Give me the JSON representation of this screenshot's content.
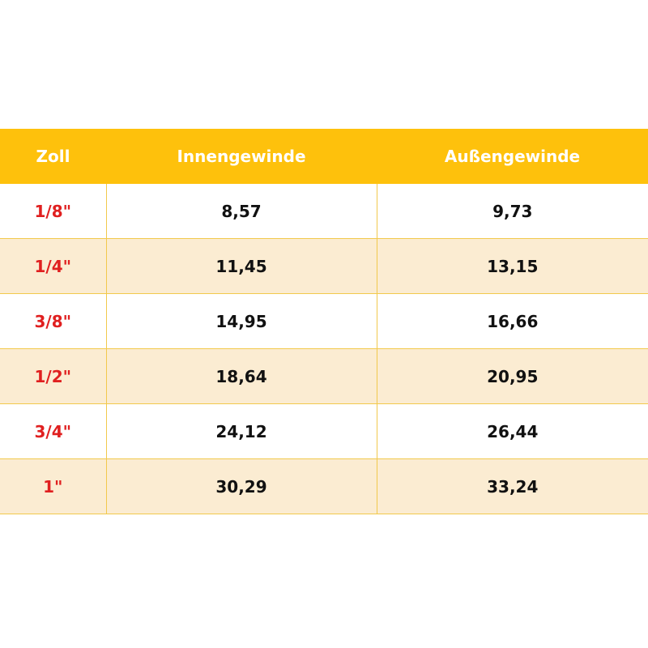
{
  "colors": {
    "header_background": "#fec10c",
    "header_text": "#ffffff",
    "row_tint": "#fbecd2",
    "zoll_text": "#e02020",
    "value_text": "#111111",
    "grid_line": "#f2c94c"
  },
  "table": {
    "headers": [
      "Zoll",
      "Innengewinde",
      "Außengewinde"
    ],
    "rows": [
      [
        "1/8\"",
        "8,57",
        "9,73"
      ],
      [
        "1/4\"",
        "11,45",
        "13,15"
      ],
      [
        "3/8\"",
        "14,95",
        "16,66"
      ],
      [
        "1/2\"",
        "18,64",
        "20,95"
      ],
      [
        "3/4\"",
        "24,12",
        "26,44"
      ],
      [
        "1\"",
        "30,29",
        "33,24"
      ]
    ]
  }
}
